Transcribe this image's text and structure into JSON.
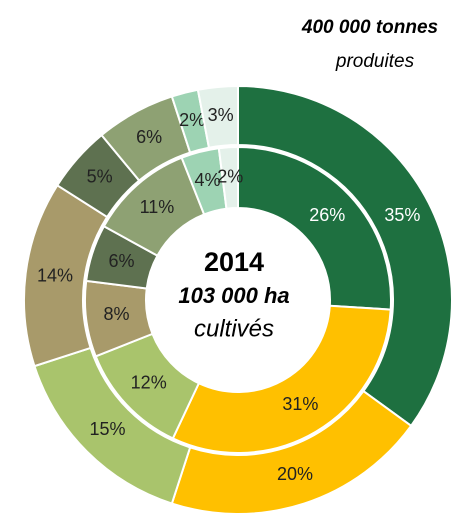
{
  "chart_data": {
    "type": "donut",
    "annotations": [
      "400 000 tonnes",
      "produites"
    ],
    "center_text": [
      "2014",
      "103 000 ha",
      "cultivés"
    ],
    "series": [
      {
        "values": [
          35,
          20,
          15,
          14,
          5,
          6,
          2,
          3
        ],
        "value_labels": [
          "35%",
          "20%",
          "15%",
          "14%",
          "5%",
          "6%",
          "2%",
          "3%"
        ],
        "colors": [
          "#1e7040",
          "#ffc000",
          "#a9c46c",
          "#a89a6a",
          "#5e7150",
          "#8ea173",
          "#9dd3b3",
          "#e4f1ea"
        ]
      },
      {
        "values": [
          26,
          31,
          12,
          8,
          6,
          11,
          4,
          2
        ],
        "value_labels": [
          "26%",
          "31%",
          "12%",
          "8%",
          "6%",
          "11%",
          "4%",
          "2%"
        ],
        "colors": [
          "#1e7040",
          "#ffc000",
          "#a9c46c",
          "#a89a6a",
          "#5e7150",
          "#8ea173",
          "#9dd3b3",
          "#e4f1ea"
        ]
      }
    ]
  }
}
